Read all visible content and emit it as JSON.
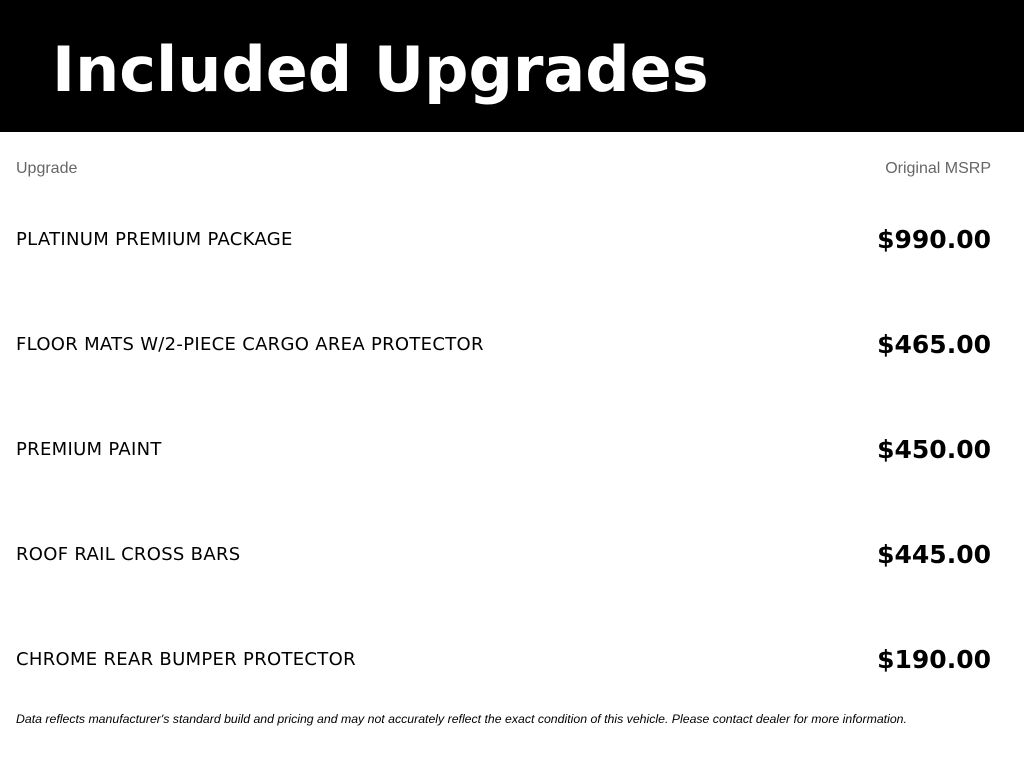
{
  "header": {
    "title": "Included Upgrades"
  },
  "columns": {
    "upgrade": "Upgrade",
    "msrp": "Original MSRP"
  },
  "items": [
    {
      "name": "PLATINUM PREMIUM PACKAGE",
      "price": "$990.00"
    },
    {
      "name": "FLOOR MATS W/2-PIECE CARGO AREA PROTECTOR",
      "price": "$465.00"
    },
    {
      "name": "PREMIUM PAINT",
      "price": "$450.00"
    },
    {
      "name": "ROOF RAIL CROSS BARS",
      "price": "$445.00"
    },
    {
      "name": "CHROME REAR BUMPER PROTECTOR",
      "price": "$190.00"
    }
  ],
  "footer": {
    "disclaimer": "Data reflects manufacturer's standard build and pricing and may not accurately reflect the exact condition of this vehicle. Please contact dealer for more information."
  }
}
